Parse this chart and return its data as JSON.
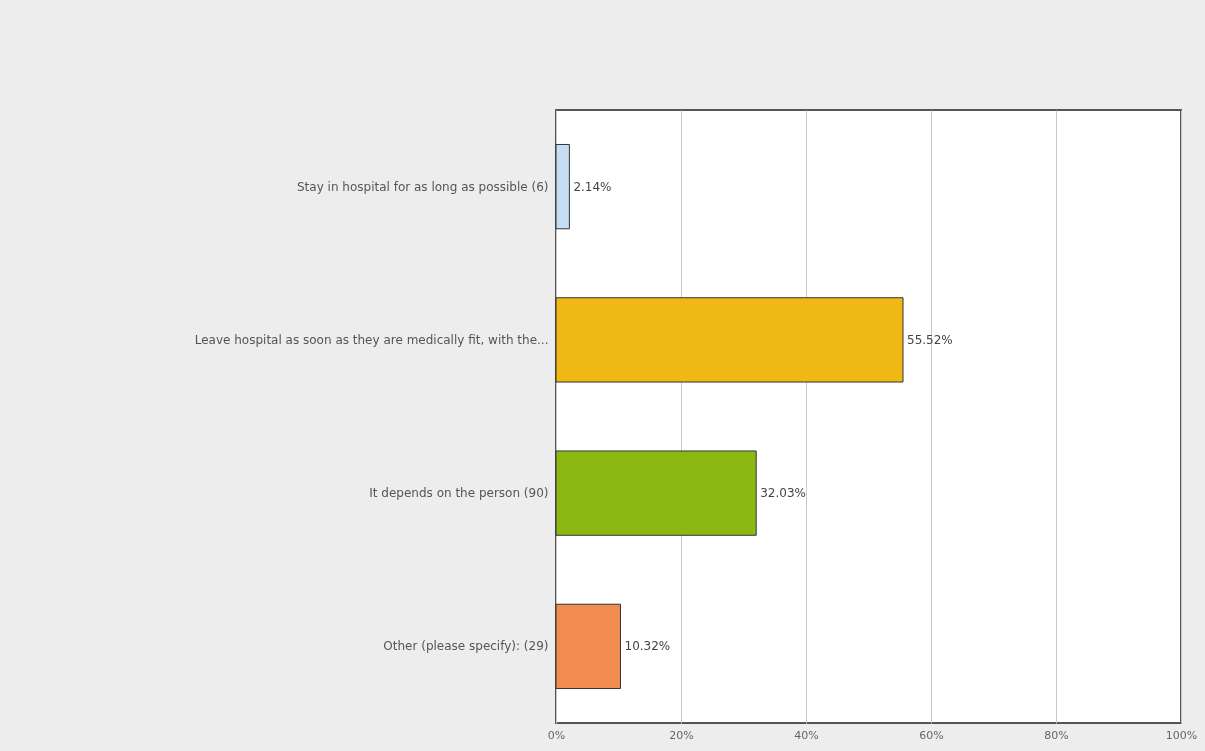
{
  "chart_data": {
    "type": "bar",
    "orientation": "horizontal",
    "categories": [
      "Stay in hospital for as long as possible (6)",
      "Leave hospital as soon as they are medically fit, with the...",
      "It depends on the person (90)",
      "Other (please specify): (29)"
    ],
    "values": [
      2.14,
      55.52,
      32.03,
      10.32
    ],
    "value_labels": [
      "2.14%",
      "55.52%",
      "32.03%",
      "10.32%"
    ],
    "colors": [
      "#c6def4",
      "#f0b814",
      "#8cb814",
      "#f28c50"
    ],
    "xlim": [
      0,
      100
    ],
    "xticks": [
      {
        "value": 0,
        "label": "0%"
      },
      {
        "value": 20,
        "label": "20%"
      },
      {
        "value": 40,
        "label": "40%"
      },
      {
        "value": 60,
        "label": "60%"
      },
      {
        "value": 80,
        "label": "80%"
      },
      {
        "value": 100,
        "label": "100%"
      }
    ],
    "grid": "x"
  }
}
